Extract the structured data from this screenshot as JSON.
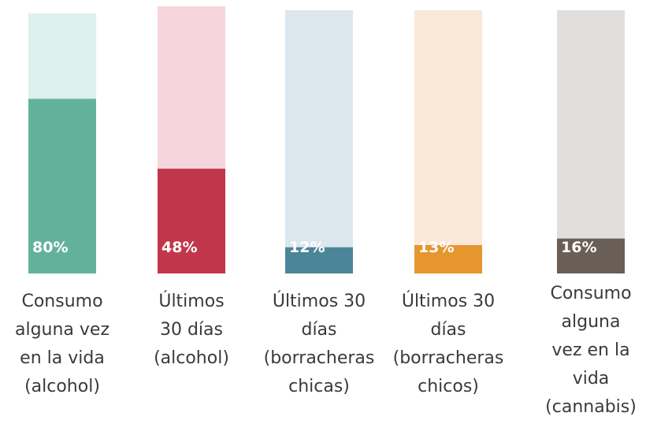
{
  "chart_data": {
    "type": "bar",
    "ylim": [
      0,
      100
    ],
    "grid": false,
    "categories": [
      "Consumo\nalguna vez\nen la vida\n(alcohol)",
      "Últimos\n30 días\n(alcohol)",
      "Últimos 30\ndías\n(borracheras\nchicas)",
      "Últimos 30\ndías\n(borracheras\nchicos)",
      "Consumo\nalguna\nvez en la\nvida\n(cannabis)"
    ],
    "values": [
      80,
      48,
      12,
      13,
      16
    ],
    "value_labels": [
      "80%",
      "48%",
      "12%",
      "13%",
      "16%"
    ],
    "colors": [
      "#62b29b",
      "#c2364b",
      "#4a8698",
      "#e5962f",
      "#6a5f57"
    ],
    "background_colors": [
      "#ddf0eb",
      "#f6d6dc",
      "#dbe6ed",
      "#fae8d8",
      "#e1dfdd"
    ]
  }
}
